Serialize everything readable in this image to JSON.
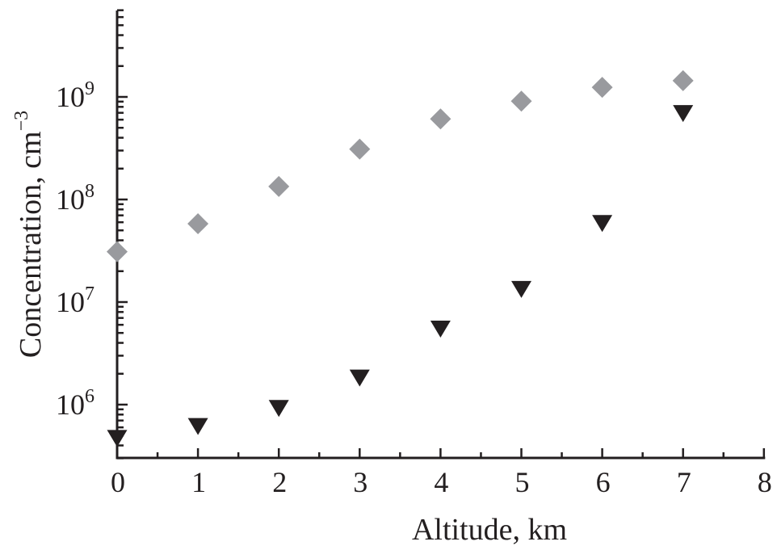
{
  "chart_data": {
    "type": "scatter",
    "title": "",
    "xlabel": "Altitude, km",
    "ylabel": "Concentration, cm",
    "ylabel_superscript": "−3",
    "xlim": [
      0,
      8
    ],
    "ylim": [
      300000,
      7000000000
    ],
    "yscale": "log",
    "grid": false,
    "legend": null,
    "x_ticks": [
      0,
      1,
      2,
      3,
      4,
      5,
      6,
      7,
      8
    ],
    "x_tick_labels": [
      "0",
      "1",
      "2",
      "3",
      "4",
      "5",
      "6",
      "7",
      "8"
    ],
    "y_ticks": [
      {
        "base": "10",
        "exp": "6",
        "value": 1000000
      },
      {
        "base": "10",
        "exp": "7",
        "value": 10000000
      },
      {
        "base": "10",
        "exp": "8",
        "value": 100000000
      },
      {
        "base": "10",
        "exp": "9",
        "value": 1000000000
      }
    ],
    "x": [
      0,
      1,
      2,
      3,
      4,
      5,
      6,
      7
    ],
    "series": [
      {
        "name": "gray diamonds",
        "marker": "diamond",
        "color": "#999a9e",
        "values": [
          31000000,
          58000000,
          134000000,
          310000000,
          610000000,
          910000000,
          1240000000,
          1440000000
        ]
      },
      {
        "name": "black down-triangles",
        "marker": "triangle-down",
        "color": "#231f20",
        "values": [
          490000,
          640000,
          960000,
          1900000,
          5700000,
          13900000,
          61000000,
          720000000
        ]
      }
    ]
  },
  "colors": {
    "axis": "#231f20",
    "background": "#ffffff"
  }
}
